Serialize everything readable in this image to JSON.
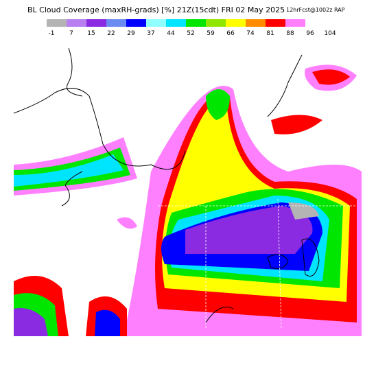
{
  "title": "BL Cloud Coverage (maxRH-grads) [%] 21Z(15cdt) FRI 02 May 2025",
  "subtitle": "12hrFcst@1002z RAP",
  "colorbar": {
    "colors": [
      "#b4b4b4",
      "#b87ff0",
      "#8a2be2",
      "#6a8cf0",
      "#0000ff",
      "#90ffff",
      "#00e5ff",
      "#00e600",
      "#90e600",
      "#ffff00",
      "#ff8c00",
      "#ff0000",
      "#ff80ff"
    ],
    "ticks": [
      -1,
      7,
      15,
      22,
      29,
      37,
      44,
      52,
      59,
      66,
      74,
      81,
      88,
      96,
      104
    ]
  }
}
